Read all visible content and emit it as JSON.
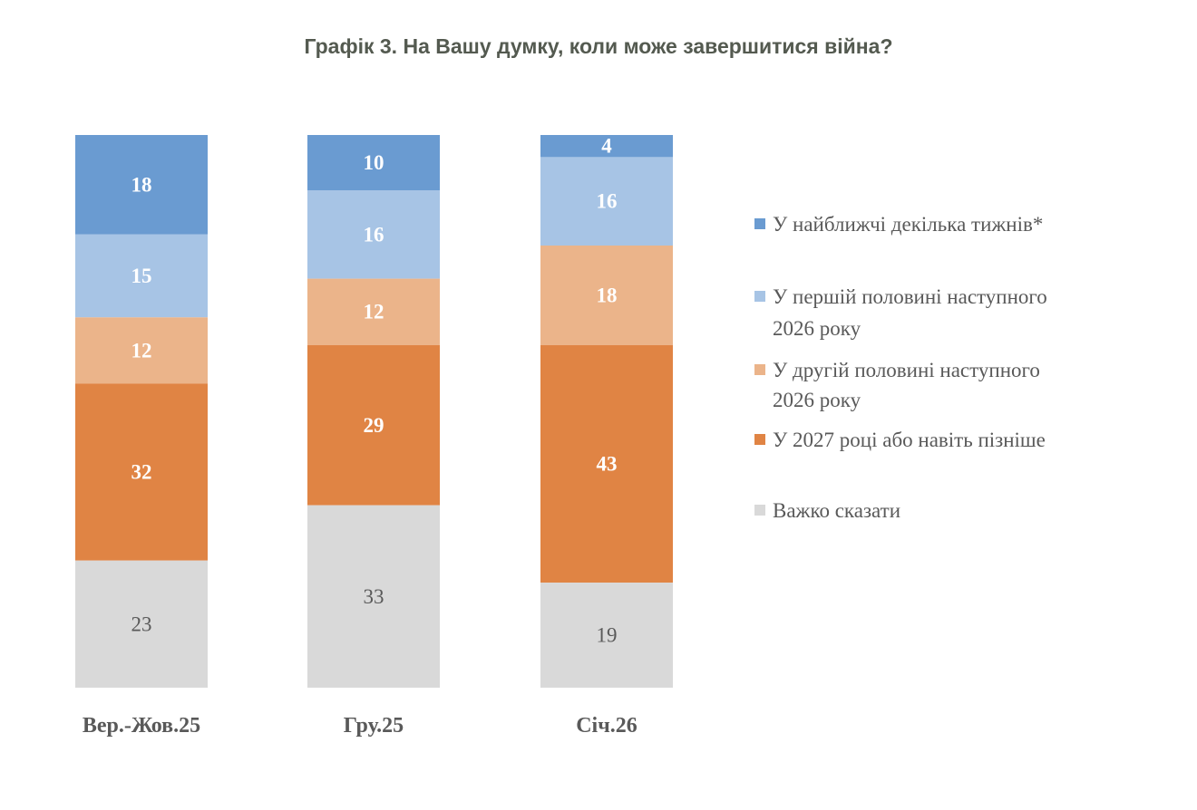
{
  "chart_data": {
    "type": "bar",
    "stacked": true,
    "title": "Графік 3. На Вашу думку, коли може завершитися війна?",
    "categories": [
      "Вер.-Жов.25",
      "Гру.25",
      "Січ.26"
    ],
    "ylim": [
      0,
      100
    ],
    "grid": false,
    "legend_position": "right",
    "series": [
      {
        "name": "У найближчі декілька тижнів*",
        "name_lines": [
          "У найближчі декілька тижнів*"
        ],
        "color": "#6A9BD1",
        "label_color": "#ffffff",
        "values": [
          18,
          10,
          4
        ]
      },
      {
        "name": "У першій половині наступного 2026 року",
        "name_lines": [
          "У першій половині наступного",
          "2026 року"
        ],
        "color": "#A7C4E5",
        "label_color": "#ffffff",
        "values": [
          15,
          16,
          16
        ]
      },
      {
        "name": "У другій половині наступного 2026 року",
        "name_lines": [
          "У другій половині наступного",
          "2026 року"
        ],
        "color": "#EBB48A",
        "label_color": "#ffffff",
        "values": [
          12,
          12,
          18
        ]
      },
      {
        "name": "У 2027 році або навіть пізніше",
        "name_lines": [
          "У 2027 році або навіть пізніше"
        ],
        "color": "#E08444",
        "label_color": "#ffffff",
        "values": [
          32,
          29,
          43
        ]
      },
      {
        "name": "Важко сказати",
        "name_lines": [
          "Важко сказати"
        ],
        "color": "#D9D9D9",
        "label_color": "#595959",
        "values": [
          23,
          33,
          19
        ]
      }
    ]
  }
}
